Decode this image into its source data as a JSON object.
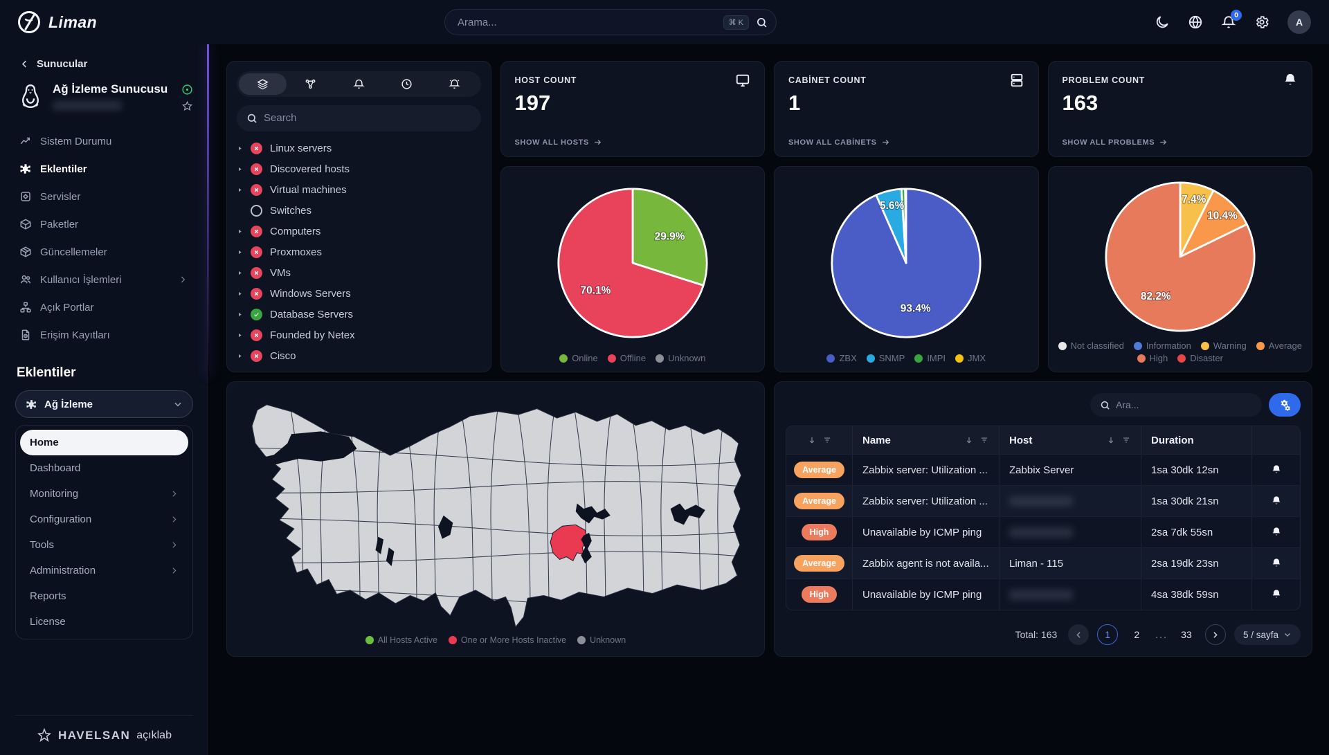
{
  "navbar": {
    "brand": "Liman",
    "search": {
      "placeholder": "Arama...",
      "shortcut": "⌘ K"
    },
    "notification_count": "0",
    "avatar_initial": "A"
  },
  "sidebar": {
    "back_label": "Sunucular",
    "server": {
      "name": "Ağ İzleme Sunucusu",
      "subtitle_redacted": true
    },
    "items": [
      {
        "label": "Sistem Durumu",
        "icon": "chart-line",
        "active": false,
        "chevron": false
      },
      {
        "label": "Eklentiler",
        "icon": "puzzle",
        "active": true,
        "chevron": false
      },
      {
        "label": "Servisler",
        "icon": "services",
        "active": false,
        "chevron": false
      },
      {
        "label": "Paketler",
        "icon": "package",
        "active": false,
        "chevron": false
      },
      {
        "label": "Güncellemeler",
        "icon": "updates",
        "active": false,
        "chevron": false
      },
      {
        "label": "Kullanıcı İşlemleri",
        "icon": "users",
        "active": false,
        "chevron": true
      },
      {
        "label": "Açık Portlar",
        "icon": "ports",
        "active": false,
        "chevron": false
      },
      {
        "label": "Erişim Kayıtları",
        "icon": "logs",
        "active": false,
        "chevron": false
      }
    ],
    "section_title": "Eklentiler",
    "extension_select": {
      "label": "Ağ İzleme"
    },
    "extension_menu": [
      {
        "label": "Home",
        "active": true,
        "chevron": false
      },
      {
        "label": "Dashboard",
        "active": false,
        "chevron": false
      },
      {
        "label": "Monitoring",
        "active": false,
        "chevron": true
      },
      {
        "label": "Configuration",
        "active": false,
        "chevron": true
      },
      {
        "label": "Tools",
        "active": false,
        "chevron": true
      },
      {
        "label": "Administration",
        "active": false,
        "chevron": true
      },
      {
        "label": "Reports",
        "active": false,
        "chevron": false
      },
      {
        "label": "License",
        "active": false,
        "chevron": false
      }
    ],
    "footer_brand": "HAVELSAN",
    "footer_sub": "açıklab"
  },
  "tree_panel": {
    "tabs": [
      "layers",
      "topology",
      "bell",
      "clock",
      "bell2"
    ],
    "active_tab": 0,
    "search_placeholder": "Search",
    "items": [
      {
        "label": "Linux servers",
        "status": "err",
        "expandable": true
      },
      {
        "label": "Discovered hosts",
        "status": "err",
        "expandable": true
      },
      {
        "label": "Virtual machines",
        "status": "err",
        "expandable": true
      },
      {
        "label": "Switches",
        "status": "none",
        "expandable": false
      },
      {
        "label": "Computers",
        "status": "err",
        "expandable": true
      },
      {
        "label": "Proxmoxes",
        "status": "err",
        "expandable": true
      },
      {
        "label": "VMs",
        "status": "err",
        "expandable": true
      },
      {
        "label": "Windows Servers",
        "status": "err",
        "expandable": true
      },
      {
        "label": "Database Servers",
        "status": "ok",
        "expandable": true
      },
      {
        "label": "Founded by Netex",
        "status": "err",
        "expandable": true
      },
      {
        "label": "Cisco",
        "status": "err",
        "expandable": true
      }
    ]
  },
  "stats": [
    {
      "label": "HOST COUNT",
      "value": "197",
      "link": "SHOW ALL HOSTS",
      "icon": "monitor"
    },
    {
      "label": "CABİNET COUNT",
      "value": "1",
      "link": "SHOW ALL CABİNETS",
      "icon": "rack"
    },
    {
      "label": "PROBLEM COUNT",
      "value": "163",
      "link": "SHOW ALL PROBLEMS",
      "icon": "bell-fill"
    }
  ],
  "chart_data": [
    {
      "type": "pie",
      "title": "Host availability",
      "labels": [
        "Online",
        "Offline",
        "Unknown"
      ],
      "values": [
        29.9,
        70.1,
        0
      ],
      "colors": [
        "#77b83c",
        "#e8435a",
        "#8a8f98"
      ],
      "legend_position": "bottom",
      "shown_slice_labels": [
        "29.9%",
        "70.1%"
      ]
    },
    {
      "type": "pie",
      "title": "Host interface types",
      "labels": [
        "ZBX",
        "SNMP",
        "IMPI",
        "JMX"
      ],
      "values": [
        93.4,
        5.6,
        0.8,
        0.2
      ],
      "colors": [
        "#4a5cc5",
        "#29aae3",
        "#38a63e",
        "#f7c112"
      ],
      "legend_position": "bottom",
      "shown_slice_labels": [
        "93.4%",
        "5.6%"
      ]
    },
    {
      "type": "pie",
      "title": "Problem severities",
      "labels": [
        "Not classified",
        "Information",
        "Warning",
        "Average",
        "High",
        "Disaster"
      ],
      "values": [
        0,
        0,
        7.4,
        10.4,
        82.2,
        0
      ],
      "colors": [
        "#e8e8e8",
        "#4f7bd9",
        "#f7c04a",
        "#f9974a",
        "#e87a5c",
        "#e84545"
      ],
      "legend_position": "bottom",
      "shown_slice_labels": [
        "7.4%",
        "10.4%",
        "82.2%"
      ]
    }
  ],
  "map": {
    "legend": [
      {
        "label": "All Hosts Active",
        "color": "#6abf40"
      },
      {
        "label": "One or More Hosts Inactive",
        "color": "#ea3a52"
      },
      {
        "label": "Unknown",
        "color": "#8a8f98"
      }
    ],
    "highlighted_region_status": "One or More Hosts Inactive",
    "highlighted_region_color": "#ea3a52"
  },
  "problems": {
    "search_placeholder": "Ara...",
    "columns": {
      "name": "Name",
      "host": "Host",
      "duration": "Duration"
    },
    "severity_colors": {
      "Average": "#f8a25f",
      "High": "#ec7b5d"
    },
    "rows": [
      {
        "severity": "Average",
        "name": "Zabbix server: Utilization ...",
        "host": "Zabbix Server",
        "host_redacted": false,
        "duration": "1sa 30dk 12sn"
      },
      {
        "severity": "Average",
        "name": "Zabbix server: Utilization ...",
        "host": "",
        "host_redacted": true,
        "duration": "1sa 30dk 21sn"
      },
      {
        "severity": "High",
        "name": "Unavailable by ICMP ping",
        "host": "",
        "host_redacted": true,
        "duration": "2sa 7dk 55sn"
      },
      {
        "severity": "Average",
        "name": "Zabbix agent is not availa...",
        "host": "Liman - 115",
        "host_redacted": false,
        "duration": "2sa 19dk 23sn"
      },
      {
        "severity": "High",
        "name": "Unavailable by ICMP ping",
        "host": "",
        "host_redacted": true,
        "duration": "4sa 38dk 59sn"
      }
    ],
    "pagination": {
      "total_label": "Total: 163",
      "pages": [
        "1",
        "2",
        "...",
        "33"
      ],
      "active_page": "1",
      "page_size_label": "5 / sayfa"
    }
  }
}
